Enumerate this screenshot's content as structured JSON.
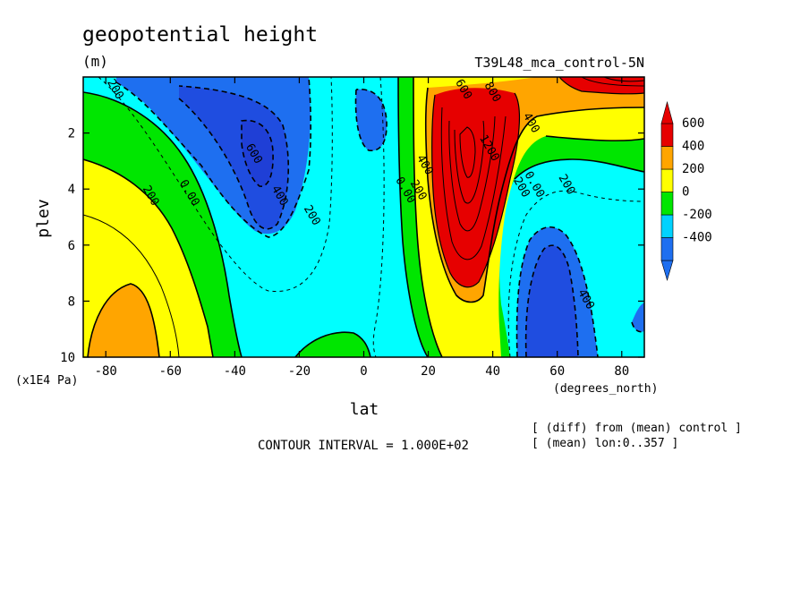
{
  "chart_data": {
    "type": "heatmap",
    "title": "geopotential height",
    "units": "(m)",
    "run_label": "T39L48_mca_control-5N",
    "xlabel": "lat",
    "x_units": "(degrees_north)",
    "ylabel": "plev",
    "y_units": "(x1E4 Pa)",
    "xlim": [
      -87,
      87
    ],
    "ylim": [
      0,
      10
    ],
    "y_inverted": true,
    "x_ticks": [
      -80,
      -60,
      -40,
      -20,
      0,
      20,
      40,
      60,
      80
    ],
    "y_ticks": [
      2,
      4,
      6,
      8,
      10
    ],
    "contour_interval_label": "CONTOUR INTERVAL = 1.000E+02",
    "diff_note": "[ (diff) from (mean) control ]",
    "mean_note": "[ (mean) lon:0..357 ]",
    "colorbar": {
      "labels": [
        "600",
        "400",
        "200",
        "0",
        "-200",
        "-400"
      ],
      "levels": [
        -400,
        -200,
        0,
        200,
        400,
        600
      ],
      "colors": [
        "#1e6ff0",
        "#00d2ff",
        "#00e600",
        "#ffff00",
        "#ffa500",
        "#e60000"
      ]
    },
    "contour_labels": [
      {
        "text": "200",
        "lat": -78,
        "plev": 0.5
      },
      {
        "text": "600",
        "lat": -35,
        "plev": 2.8
      },
      {
        "text": "400",
        "lat": -27,
        "plev": 4.3
      },
      {
        "text": "200",
        "lat": -17,
        "plev": 5.0
      },
      {
        "text": "200",
        "lat": -67,
        "plev": 4.3
      },
      {
        "text": "0.00",
        "lat": -55,
        "plev": 4.2
      },
      {
        "text": "0.00",
        "lat": 12,
        "plev": 4.1
      },
      {
        "text": "200",
        "lat": 16,
        "plev": 4.1
      },
      {
        "text": "400",
        "lat": 18,
        "plev": 3.2
      },
      {
        "text": "600",
        "lat": 30,
        "plev": 0.5
      },
      {
        "text": "800",
        "lat": 39,
        "plev": 0.6
      },
      {
        "text": "1200",
        "lat": 38,
        "plev": 2.6
      },
      {
        "text": "400",
        "lat": 51,
        "plev": 1.7
      },
      {
        "text": "200",
        "lat": 48,
        "plev": 4.0
      },
      {
        "text": "0.00",
        "lat": 52,
        "plev": 3.9
      },
      {
        "text": "200",
        "lat": 62,
        "plev": 3.9
      },
      {
        "text": "400",
        "lat": 68,
        "plev": 8.0
      }
    ]
  }
}
